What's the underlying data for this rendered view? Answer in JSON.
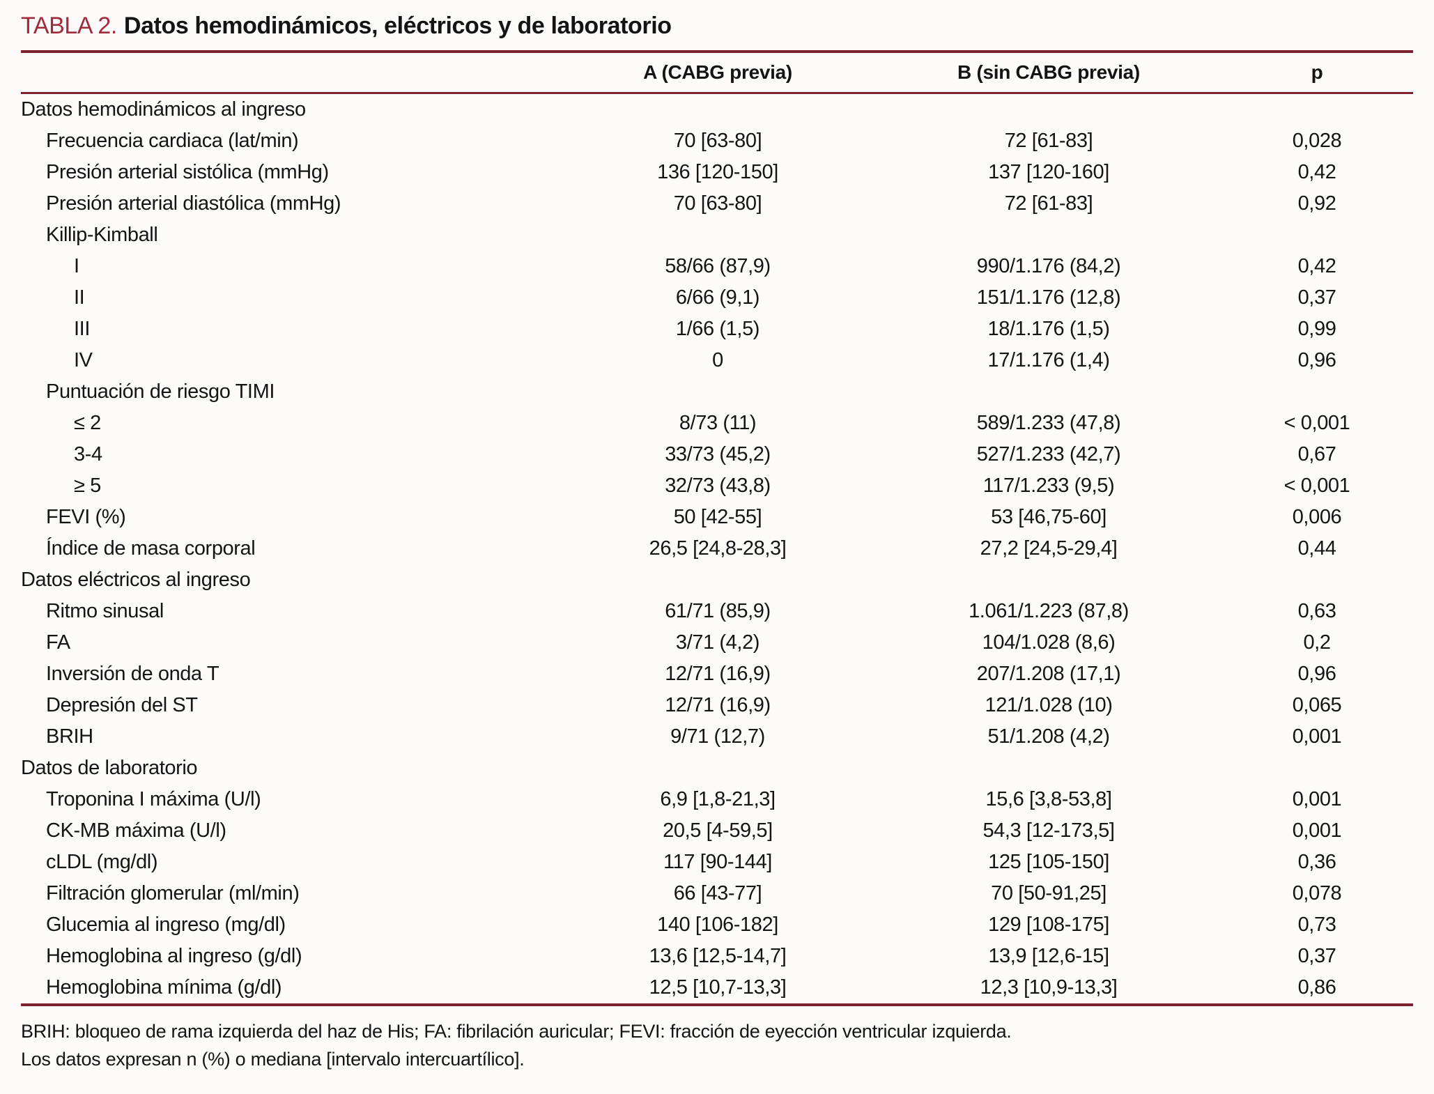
{
  "title": {
    "prefix": "TABLA 2.",
    "text": "Datos hemodinámicos, eléctricos y de laboratorio"
  },
  "colors": {
    "accent_red": "#a02b3e",
    "rule_red": "#7f2230",
    "text": "#141414",
    "background": "#fcfbf9"
  },
  "table": {
    "columns": {
      "label": "",
      "a": "A (CABG previa)",
      "b": "B (sin CABG previa)",
      "p": "p"
    },
    "rows": [
      {
        "label": "Datos hemodinámicos al ingreso",
        "indent": 0,
        "a": "",
        "b": "",
        "p": ""
      },
      {
        "label": "Frecuencia cardiaca (lat/min)",
        "indent": 1,
        "a": "70 [63-80]",
        "b": "72 [61-83]",
        "p": "0,028"
      },
      {
        "label": "Presión arterial sistólica (mmHg)",
        "indent": 1,
        "a": "136 [120-150]",
        "b": "137 [120-160]",
        "p": "0,42"
      },
      {
        "label": "Presión arterial diastólica (mmHg)",
        "indent": 1,
        "a": "70 [63-80]",
        "b": "72 [61-83]",
        "p": "0,92"
      },
      {
        "label": "Killip-Kimball",
        "indent": 1,
        "a": "",
        "b": "",
        "p": ""
      },
      {
        "label": "I",
        "indent": 2,
        "a": "58/66 (87,9)",
        "b": "990/1.176 (84,2)",
        "p": "0,42"
      },
      {
        "label": "II",
        "indent": 2,
        "a": "6/66 (9,1)",
        "b": "151/1.176 (12,8)",
        "p": "0,37"
      },
      {
        "label": "III",
        "indent": 2,
        "a": "1/66 (1,5)",
        "b": "18/1.176 (1,5)",
        "p": "0,99"
      },
      {
        "label": "IV",
        "indent": 2,
        "a": "0",
        "b": "17/1.176 (1,4)",
        "p": "0,96"
      },
      {
        "label": "Puntuación de riesgo TIMI",
        "indent": 1,
        "a": "",
        "b": "",
        "p": ""
      },
      {
        "label": "≤ 2",
        "indent": 2,
        "a": "8/73 (11)",
        "b": "589/1.233 (47,8)",
        "p": "< 0,001"
      },
      {
        "label": "3-4",
        "indent": 2,
        "a": "33/73 (45,2)",
        "b": "527/1.233 (42,7)",
        "p": "0,67"
      },
      {
        "label": "≥ 5",
        "indent": 2,
        "a": "32/73 (43,8)",
        "b": "117/1.233 (9,5)",
        "p": "< 0,001"
      },
      {
        "label": "FEVI (%)",
        "indent": 1,
        "a": "50 [42-55]",
        "b": "53 [46,75-60]",
        "p": "0,006"
      },
      {
        "label": "Índice de masa corporal",
        "indent": 1,
        "a": "26,5 [24,8-28,3]",
        "b": "27,2 [24,5-29,4]",
        "p": "0,44"
      },
      {
        "label": "Datos eléctricos al ingreso",
        "indent": 0,
        "a": "",
        "b": "",
        "p": ""
      },
      {
        "label": "Ritmo sinusal",
        "indent": 1,
        "a": "61/71 (85,9)",
        "b": "1.061/1.223 (87,8)",
        "p": "0,63"
      },
      {
        "label": "FA",
        "indent": 1,
        "a": "3/71 (4,2)",
        "b": "104/1.028 (8,6)",
        "p": "0,2"
      },
      {
        "label": "Inversión de onda T",
        "indent": 1,
        "a": "12/71 (16,9)",
        "b": "207/1.208 (17,1)",
        "p": "0,96"
      },
      {
        "label": "Depresión del ST",
        "indent": 1,
        "a": "12/71 (16,9)",
        "b": "121/1.028 (10)",
        "p": "0,065"
      },
      {
        "label": "BRIH",
        "indent": 1,
        "a": "9/71 (12,7)",
        "b": "51/1.208 (4,2)",
        "p": "0,001"
      },
      {
        "label": "Datos de laboratorio",
        "indent": 0,
        "a": "",
        "b": "",
        "p": ""
      },
      {
        "label": "Troponina I máxima (U/l)",
        "indent": 1,
        "a": "6,9 [1,8-21,3]",
        "b": "15,6 [3,8-53,8]",
        "p": "0,001"
      },
      {
        "label": "CK-MB máxima (U/l)",
        "indent": 1,
        "a": "20,5 [4-59,5]",
        "b": "54,3 [12-173,5]",
        "p": "0,001"
      },
      {
        "label": "cLDL (mg/dl)",
        "indent": 1,
        "a": "117 [90-144]",
        "b": "125 [105-150]",
        "p": "0,36"
      },
      {
        "label": "Filtración glomerular (ml/min)",
        "indent": 1,
        "a": "66 [43-77]",
        "b": "70 [50-91,25]",
        "p": "0,078"
      },
      {
        "label": "Glucemia al ingreso (mg/dl)",
        "indent": 1,
        "a": "140 [106-182]",
        "b": "129 [108-175]",
        "p": "0,73"
      },
      {
        "label": "Hemoglobina al ingreso (g/dl)",
        "indent": 1,
        "a": "13,6 [12,5-14,7]",
        "b": "13,9 [12,6-15]",
        "p": "0,37"
      },
      {
        "label": "Hemoglobina mínima (g/dl)",
        "indent": 1,
        "a": "12,5 [10,7-13,3]",
        "b": "12,3 [10,9-13,3]",
        "p": "0,86"
      }
    ]
  },
  "footnotes": [
    "BRIH: bloqueo de rama izquierda del haz de His; FA: fibrilación auricular; FEVI: fracción de eyección ventricular izquierda.",
    "Los datos expresan n (%) o mediana [intervalo intercuartílico]."
  ]
}
